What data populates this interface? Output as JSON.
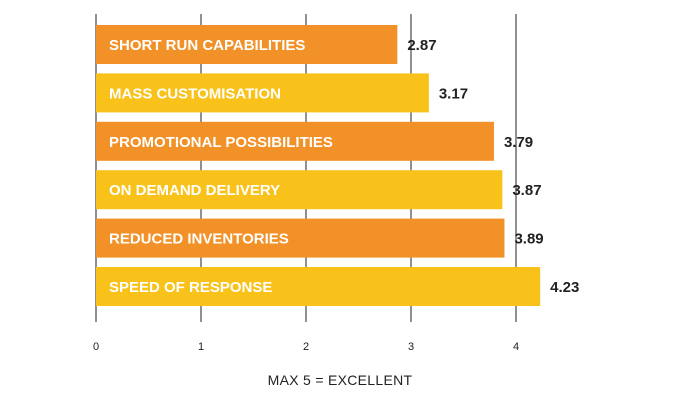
{
  "chart_data": {
    "type": "bar",
    "orientation": "horizontal",
    "categories": [
      "SHORT RUN CAPABILITIES",
      "MASS CUSTOMISATION",
      "PROMOTIONAL POSSIBILITIES",
      "ON DEMAND DELIVERY",
      "REDUCED INVENTORIES",
      "SPEED OF RESPONSE"
    ],
    "values": [
      2.87,
      3.17,
      3.79,
      3.87,
      3.89,
      4.23
    ],
    "value_labels": [
      "2.87",
      "3.17",
      "3.79",
      "3.87",
      "3.89",
      "4.23"
    ],
    "xlim": [
      0,
      4.25
    ],
    "xticks": [
      "0",
      "1",
      "2",
      "3",
      "4"
    ],
    "grid": "vertical",
    "xlabel": "MAX 5 = EXCELLENT",
    "title": "",
    "colors": [
      "#F29127",
      "#F9C21A",
      "#F29127",
      "#F9C21A",
      "#F29127",
      "#F9C21A"
    ]
  }
}
